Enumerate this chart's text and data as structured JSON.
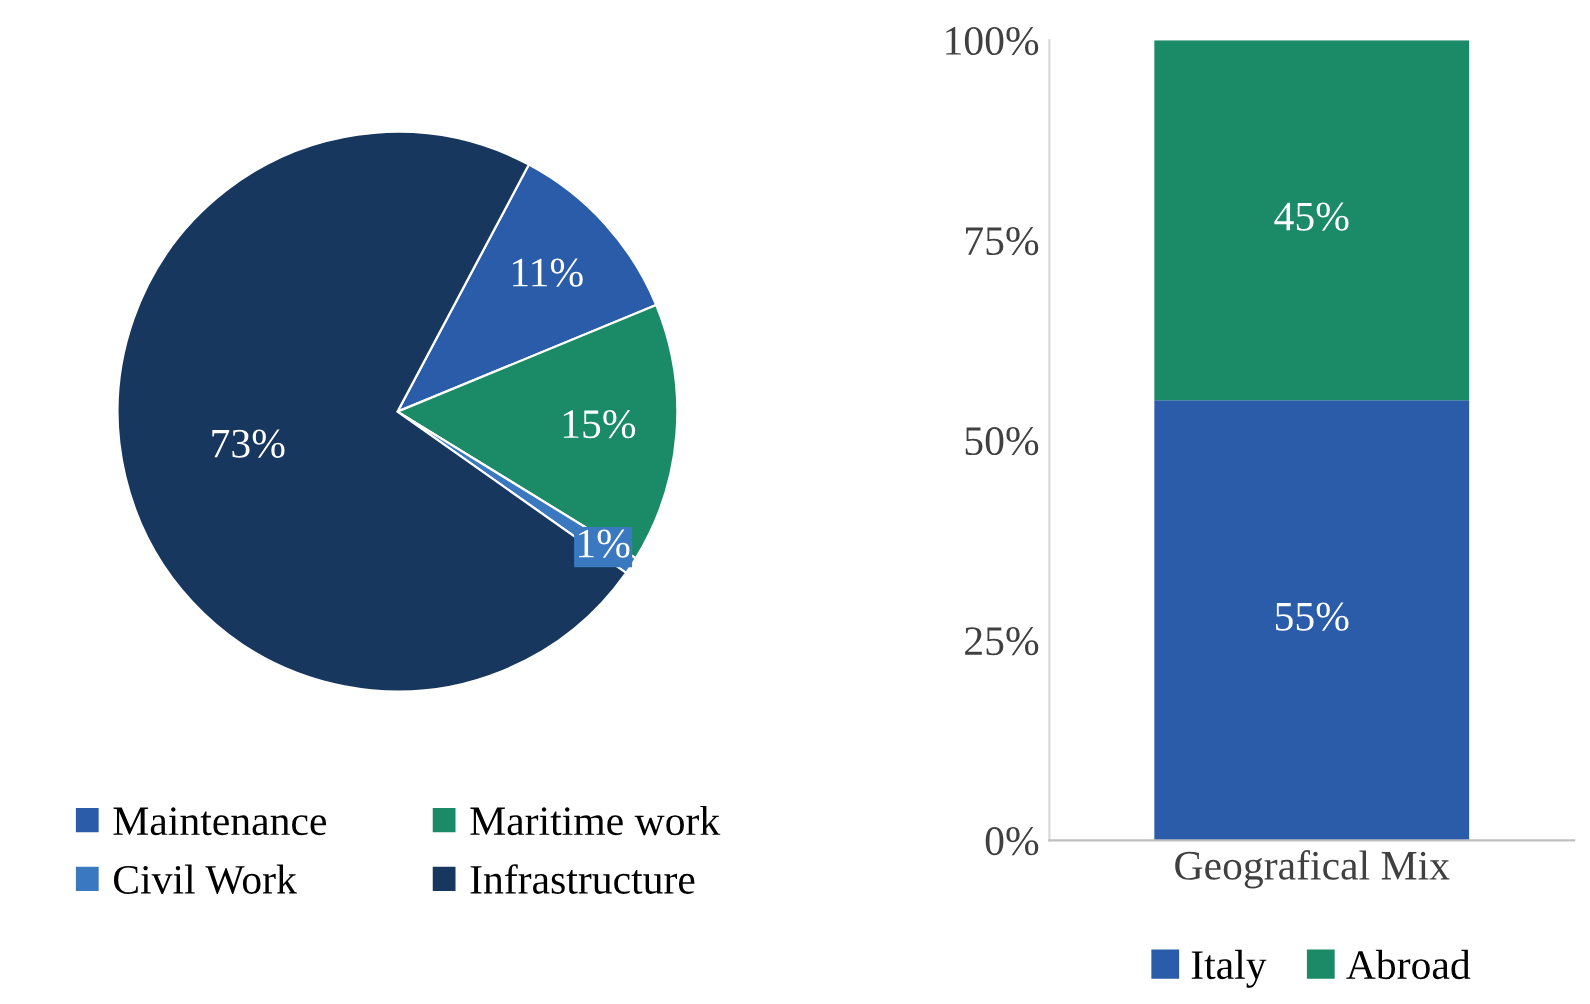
{
  "chart_data": [
    {
      "type": "pie",
      "categories": [
        "Maintenance",
        "Maritime work",
        "Civil Work",
        "Infrastructure"
      ],
      "values": [
        11,
        15,
        1,
        73
      ],
      "colors": [
        "#2a5caa",
        "#1b8a66",
        "#3a78c0",
        "#17375e"
      ],
      "value_labels": [
        "11%",
        "15%",
        "1%",
        "73%"
      ],
      "legend": "bottom"
    },
    {
      "type": "bar",
      "stacked": true,
      "categories": [
        "Geografical Mix"
      ],
      "series": [
        {
          "name": "Italy",
          "color": "#2a5caa",
          "values": [
            55
          ],
          "value_labels": [
            "55%"
          ]
        },
        {
          "name": "Abroad",
          "color": "#1b8a66",
          "values": [
            45
          ],
          "value_labels": [
            "45%"
          ]
        }
      ],
      "ylim": [
        0,
        100
      ],
      "yticks": [
        {
          "value": 0,
          "label": "0%"
        },
        {
          "value": 25,
          "label": "25%"
        },
        {
          "value": 50,
          "label": "50%"
        },
        {
          "value": 75,
          "label": "75%"
        },
        {
          "value": 100,
          "label": "100%"
        }
      ],
      "grid": false,
      "legend": "bottom"
    }
  ]
}
